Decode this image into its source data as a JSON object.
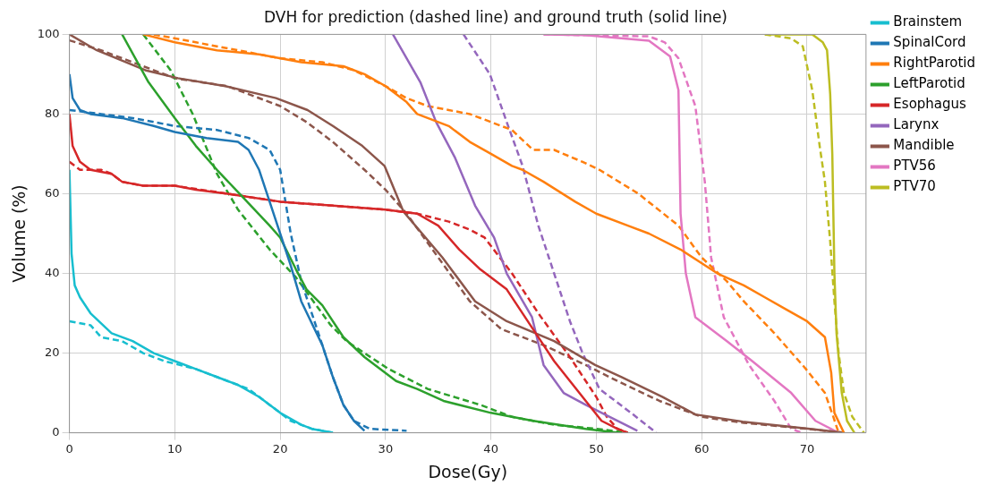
{
  "chart_data": {
    "type": "line",
    "title": "DVH for prediction (dashed line) and ground truth (solid line)",
    "xlabel": "Dose(Gy)",
    "ylabel": "Volume (%)",
    "xlim": [
      0,
      75.6
    ],
    "xticks": [
      0,
      10,
      20,
      30,
      40,
      50,
      60,
      70
    ],
    "ylim": [
      0,
      100
    ],
    "yticks": [
      0,
      20,
      40,
      60,
      80,
      100
    ],
    "grid": true,
    "legend": "top right",
    "series": [
      {
        "name": "Brainstem",
        "color": "#17becf",
        "line_style": "solid",
        "x": [
          0,
          0.2,
          0.5,
          1,
          2,
          4,
          6,
          8,
          10,
          12,
          14,
          16,
          18,
          20,
          22,
          23,
          25
        ],
        "values": [
          66,
          45,
          37,
          34,
          30,
          25,
          23,
          20,
          18,
          16,
          14,
          12,
          9,
          5,
          2,
          1,
          0
        ]
      },
      {
        "name": "SpinalCord",
        "color": "#1f77b4",
        "line_style": "solid",
        "x": [
          0,
          0.3,
          1,
          2,
          5,
          8,
          10,
          13,
          16,
          17,
          18,
          19,
          20,
          21,
          22,
          24,
          25,
          26,
          27,
          28
        ],
        "values": [
          90,
          84,
          81,
          80,
          79,
          77,
          75.5,
          74,
          73,
          71,
          66,
          58,
          50,
          42,
          33,
          22,
          14,
          7,
          3,
          0.5
        ]
      },
      {
        "name": "RightParotid",
        "color": "#ff7f0e",
        "line_style": "solid",
        "x": [
          7,
          10,
          14,
          18,
          22,
          26,
          28,
          30,
          32,
          33,
          36,
          38,
          40,
          42,
          43,
          45,
          48,
          50,
          53,
          55,
          58,
          61.5,
          64,
          66,
          68,
          70,
          71.7,
          72.3,
          72.6,
          73.5
        ],
        "values": [
          100,
          98,
          96,
          95,
          93,
          92,
          90,
          87,
          83,
          80,
          77,
          73,
          70,
          67,
          66,
          63,
          58,
          55,
          52,
          50,
          46,
          40,
          37,
          34,
          31,
          28,
          24,
          15,
          5,
          0
        ]
      },
      {
        "name": "LeftParotid",
        "color": "#2ca02c",
        "line_style": "solid",
        "x": [
          5,
          7.5,
          10,
          12,
          14,
          16.5,
          19,
          20,
          21.5,
          22.5,
          24,
          26,
          28,
          31,
          33,
          35.5,
          40,
          44,
          49,
          52
        ],
        "values": [
          100,
          88,
          79,
          72,
          66,
          59,
          52,
          49,
          41,
          36,
          32,
          24,
          19,
          13,
          11,
          8,
          5,
          3,
          1,
          0
        ]
      },
      {
        "name": "Esophagus",
        "color": "#d62728",
        "line_style": "solid",
        "x": [
          0,
          0.3,
          1,
          2,
          4,
          5,
          7,
          10,
          12,
          15,
          20,
          25,
          30,
          33,
          35,
          37,
          39,
          41.5,
          44,
          46,
          47.5,
          49,
          50.5,
          52,
          53
        ],
        "values": [
          80,
          72,
          68,
          66,
          65,
          63,
          62,
          62,
          61,
          60,
          58,
          57,
          56,
          55,
          52,
          46,
          41,
          36,
          26,
          18,
          13,
          8,
          3,
          1,
          0
        ]
      },
      {
        "name": "Larynx",
        "color": "#9467bd",
        "line_style": "solid",
        "x": [
          30.7,
          33.3,
          34.8,
          36.6,
          38.5,
          40.3,
          41.5,
          43.9,
          45,
          46.9,
          49,
          51.7,
          53.9
        ],
        "values": [
          100,
          88,
          78,
          69,
          57,
          49,
          40,
          29,
          17,
          10,
          7,
          3.4,
          0.5
        ]
      },
      {
        "name": "Mandible",
        "color": "#8c564b",
        "line_style": "solid",
        "x": [
          0,
          2.6,
          7.2,
          10.3,
          14.8,
          19.6,
          22.6,
          25,
          27.8,
          29.9,
          31.7,
          35.4,
          38.5,
          41.5,
          46,
          49.9,
          52.4,
          56.3,
          59.4,
          63.9,
          69.9,
          73.5
        ],
        "values": [
          100,
          96,
          91,
          89,
          87,
          84,
          81,
          77,
          72,
          67,
          55.5,
          44,
          33,
          28,
          23,
          17,
          14,
          9,
          4.6,
          2.8,
          1.1,
          0
        ]
      },
      {
        "name": "PTV56",
        "color": "#e377c2",
        "line_style": "solid",
        "x": [
          45,
          49,
          55,
          57,
          57.8,
          58,
          58.5,
          59.4,
          62.4,
          64.8,
          68.5,
          70.8,
          73
        ],
        "values": [
          100,
          99.8,
          98.4,
          94.5,
          86,
          55,
          40,
          29,
          23,
          18,
          10,
          3,
          0
        ]
      },
      {
        "name": "PTV70",
        "color": "#bcbd22",
        "line_style": "solid",
        "x": [
          66,
          70.5,
          71.5,
          71.9,
          72.2,
          72.4,
          72.6,
          72.8,
          73.3,
          73.8,
          74.5
        ],
        "values": [
          100,
          100,
          98,
          96,
          85,
          70,
          40,
          25,
          10,
          3,
          0
        ]
      },
      {
        "color": "#17becf",
        "line_style": "dashed",
        "x": [
          0,
          2,
          3,
          5,
          7,
          9,
          12,
          15,
          17,
          19,
          21,
          23,
          25
        ],
        "values": [
          28,
          27,
          24,
          23,
          20,
          18,
          16,
          13,
          11,
          7,
          3,
          1,
          0
        ]
      },
      {
        "color": "#1f77b4",
        "line_style": "dashed",
        "x": [
          0,
          3,
          6,
          8,
          10,
          14,
          17,
          19,
          20,
          20.5,
          21,
          22,
          23,
          24,
          25,
          26,
          27,
          28.5,
          32
        ],
        "values": [
          81,
          80,
          79,
          78,
          77,
          76,
          74,
          71,
          66,
          58,
          50,
          38,
          30,
          22,
          14,
          7,
          3,
          1,
          0.5
        ]
      },
      {
        "color": "#ff7f0e",
        "line_style": "dashed",
        "x": [
          8,
          12,
          16,
          20,
          24,
          27,
          30,
          32,
          34,
          36,
          38,
          40,
          42,
          44,
          46,
          48.7,
          50.3,
          54,
          57.8,
          60,
          62.4,
          64,
          66.9,
          69.9,
          71.7,
          72.5,
          73
        ],
        "values": [
          100,
          98,
          96,
          94,
          93,
          91,
          87,
          84,
          82,
          81,
          80,
          78,
          76,
          71,
          71,
          68,
          66,
          60,
          52,
          44,
          38,
          33,
          25,
          16,
          10,
          4,
          0
        ]
      },
      {
        "color": "#2ca02c",
        "line_style": "dashed",
        "x": [
          7,
          9.6,
          11.7,
          14,
          16,
          19,
          21.5,
          24.8,
          26.3,
          28,
          30.3,
          34,
          39,
          42,
          46,
          50,
          53
        ],
        "values": [
          100,
          91,
          80,
          65,
          56,
          46,
          39,
          27,
          23,
          20,
          16,
          11,
          7,
          4,
          2,
          1,
          0
        ]
      },
      {
        "color": "#d62728",
        "line_style": "dashed",
        "x": [
          0,
          1,
          3,
          4,
          5,
          7,
          10,
          15,
          20,
          25,
          30,
          33,
          36,
          38,
          39.4,
          42,
          44.5,
          47.5,
          50,
          51,
          52,
          53
        ],
        "values": [
          68,
          66,
          66,
          65,
          63,
          62,
          62,
          60,
          58,
          57,
          56,
          55,
          53,
          51,
          49,
          40,
          30,
          19,
          9,
          4,
          1,
          0
        ]
      },
      {
        "color": "#9467bd",
        "line_style": "dashed",
        "x": [
          37.4,
          39.9,
          41.5,
          43,
          44.5,
          46,
          47.5,
          48.7,
          50.3,
          53.3,
          55.7
        ],
        "values": [
          100,
          90,
          78,
          67,
          52,
          40,
          28,
          20,
          11,
          5,
          0
        ]
      },
      {
        "color": "#8c564b",
        "line_style": "dashed",
        "x": [
          0,
          3,
          7,
          10,
          15,
          20,
          22.5,
          25,
          28,
          30,
          32,
          35,
          38,
          41,
          45,
          49,
          52,
          56,
          60,
          64,
          70,
          73.5
        ],
        "values": [
          98.5,
          96,
          92,
          89,
          87,
          82,
          78,
          73,
          66,
          61,
          55,
          44,
          33,
          26,
          22,
          17,
          13,
          8,
          4,
          2.5,
          1,
          0
        ]
      },
      {
        "color": "#e377c2",
        "line_style": "dashed",
        "x": [
          45,
          55,
          56.5,
          57.8,
          59.4,
          60.3,
          60.9,
          62.1,
          64.5,
          66.9,
          68.5,
          69.5
        ],
        "values": [
          100,
          99.5,
          98,
          94,
          82,
          63,
          44,
          29,
          17,
          8,
          1,
          0
        ]
      },
      {
        "color": "#bcbd22",
        "line_style": "dashed",
        "x": [
          66,
          68.5,
          69.6,
          70.5,
          71.2,
          71.7,
          72.2,
          72.6,
          73,
          73.5,
          74.3,
          75.4
        ],
        "values": [
          100,
          99,
          97,
          86,
          72,
          63,
          48,
          33,
          20,
          10,
          4,
          0
        ]
      }
    ]
  }
}
